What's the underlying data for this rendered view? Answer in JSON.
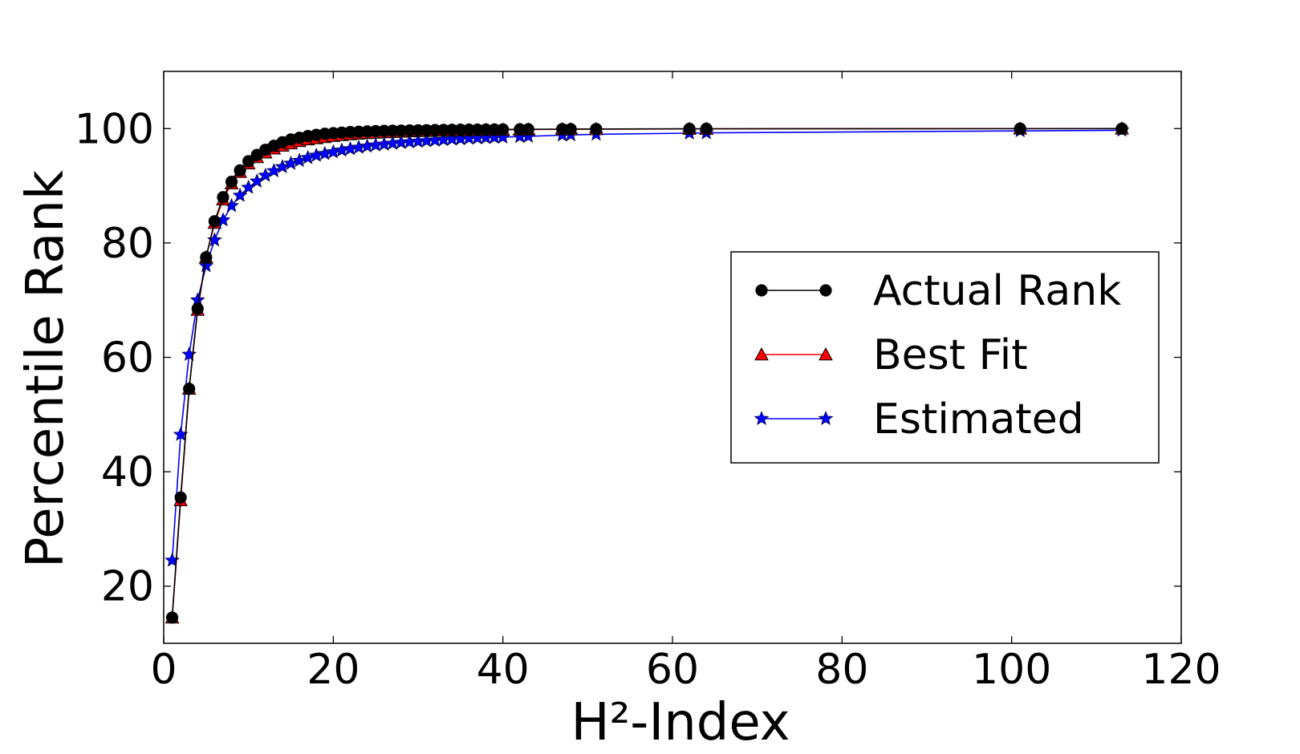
{
  "chart_data": {
    "type": "line",
    "xlabel": "H²-Index",
    "ylabel": "Percentile Rank",
    "xlim": [
      0,
      120
    ],
    "ylim": [
      10,
      110
    ],
    "xticks": [
      0,
      20,
      40,
      60,
      80,
      100,
      120
    ],
    "yticks": [
      20,
      40,
      60,
      80,
      100
    ],
    "grid": false,
    "legend_position": "center-right",
    "series": [
      {
        "name": "Actual Rank",
        "color": "#000000",
        "marker": "circle",
        "x": [
          1,
          2,
          3,
          4,
          5,
          6,
          7,
          8,
          9,
          10,
          11,
          12,
          13,
          14,
          15,
          16,
          17,
          18,
          19,
          20,
          21,
          22,
          23,
          24,
          25,
          26,
          27,
          28,
          29,
          30,
          31,
          32,
          33,
          34,
          35,
          36,
          37,
          38,
          39,
          40,
          42,
          43,
          47,
          48,
          51,
          62,
          64,
          101,
          113
        ],
        "y": [
          14.5,
          35.5,
          54.5,
          68.5,
          77.5,
          83.8,
          88.0,
          90.7,
          92.7,
          94.3,
          95.4,
          96.3,
          97.0,
          97.6,
          98.1,
          98.4,
          98.7,
          98.9,
          99.1,
          99.2,
          99.3,
          99.4,
          99.45,
          99.5,
          99.55,
          99.6,
          99.62,
          99.65,
          99.68,
          99.7,
          99.72,
          99.74,
          99.76,
          99.78,
          99.8,
          99.81,
          99.82,
          99.83,
          99.84,
          99.85,
          99.87,
          99.88,
          99.9,
          99.91,
          99.93,
          99.96,
          99.97,
          99.99,
          100.0
        ]
      },
      {
        "name": "Best Fit",
        "color": "#ff0000",
        "marker": "triangle",
        "x": [
          1,
          2,
          3,
          4,
          5,
          6,
          7,
          8,
          9,
          10,
          11,
          12,
          13,
          14,
          15,
          16,
          17,
          18,
          19,
          20,
          21,
          22,
          23,
          24,
          25,
          26,
          27,
          28,
          29,
          30,
          31,
          32,
          33,
          34,
          35,
          36,
          37,
          38,
          39,
          40,
          42,
          43,
          47,
          48,
          51,
          62,
          64,
          101,
          113
        ],
        "y": [
          14.5,
          35.0,
          54.5,
          68.3,
          77.5,
          83.5,
          87.6,
          90.4,
          92.4,
          93.9,
          95.0,
          95.8,
          96.5,
          97.0,
          97.4,
          97.8,
          98.1,
          98.3,
          98.5,
          98.7,
          98.85,
          99.0,
          99.1,
          99.2,
          99.27,
          99.35,
          99.4,
          99.45,
          99.5,
          99.55,
          99.58,
          99.62,
          99.65,
          99.68,
          99.7,
          99.72,
          99.74,
          99.76,
          99.78,
          99.8,
          99.82,
          99.84,
          99.87,
          99.88,
          99.9,
          99.94,
          99.95,
          99.99,
          100.0
        ]
      },
      {
        "name": "Estimated",
        "color": "#0000ff",
        "marker": "star",
        "x": [
          1,
          2,
          3,
          4,
          5,
          6,
          7,
          8,
          9,
          10,
          11,
          12,
          13,
          14,
          15,
          16,
          17,
          18,
          19,
          20,
          21,
          22,
          23,
          24,
          25,
          26,
          27,
          28,
          29,
          30,
          31,
          32,
          33,
          34,
          35,
          36,
          37,
          38,
          39,
          40,
          42,
          43,
          47,
          48,
          51,
          62,
          64,
          101,
          113
        ],
        "y": [
          24.5,
          46.5,
          60.5,
          70.0,
          76.0,
          80.5,
          84.0,
          86.5,
          88.3,
          89.7,
          90.8,
          91.8,
          92.6,
          93.3,
          93.9,
          94.4,
          94.9,
          95.3,
          95.6,
          95.9,
          96.2,
          96.45,
          96.7,
          96.9,
          97.1,
          97.25,
          97.4,
          97.55,
          97.65,
          97.75,
          97.85,
          97.95,
          98.05,
          98.15,
          98.2,
          98.3,
          98.35,
          98.4,
          98.45,
          98.5,
          98.6,
          98.65,
          98.85,
          98.9,
          99.0,
          99.2,
          99.25,
          99.6,
          99.7
        ]
      }
    ]
  }
}
